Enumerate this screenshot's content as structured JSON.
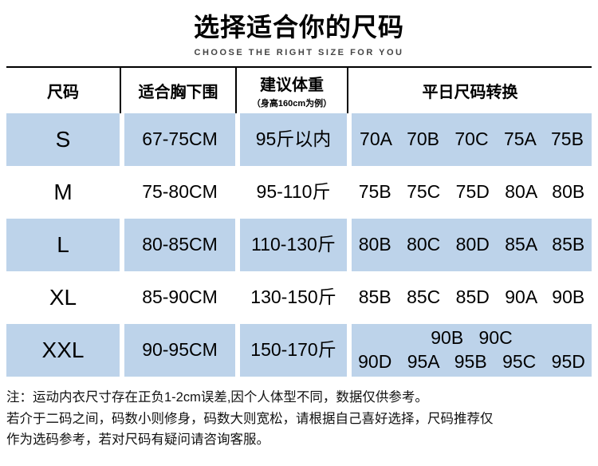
{
  "page": {
    "title": "选择适合你的尺码",
    "subtitle": "CHOOSE THE RIGHT SIZE FOR YOU"
  },
  "table": {
    "columns": {
      "size": "尺码",
      "underbust": "适合胸下围",
      "weight": "建议体重",
      "weight_sub": "（身高160cm为例）",
      "conversion": "平日尺码转换"
    },
    "rows": [
      {
        "size": "S",
        "underbust": "67-75CM",
        "weight": "95斤以内",
        "conversion": "70A 70B 70C 75A 75B"
      },
      {
        "size": "M",
        "underbust": "75-80CM",
        "weight": "95-110斤",
        "conversion": "75B 75C 75D 80A 80B"
      },
      {
        "size": "L",
        "underbust": "80-85CM",
        "weight": "110-130斤",
        "conversion": "80B 80C 80D 85A 85B"
      },
      {
        "size": "XL",
        "underbust": "85-90CM",
        "weight": "130-150斤",
        "conversion": "85B 85C 85D 90A 90B"
      },
      {
        "size": "XXL",
        "underbust": "90-95CM",
        "weight": "150-170斤",
        "conversion": "90B 90C\n90D 95A 95B 95C 95D"
      }
    ]
  },
  "notes": {
    "line1": "注：运动内衣尺寸存在正负1-2cm误差,因个人体型不同，数据仅供参考。",
    "line2": "若介于二码之间，码数小则修身，码数大则宽松，请根据自己喜好选择，尺码推荐仅",
    "line3": "作为选码参考，若对尺码有疑问请咨询客服。"
  },
  "colors": {
    "row_highlight": "#bdd3ea",
    "table_border": "#000000",
    "subtitle_text": "#444444"
  }
}
